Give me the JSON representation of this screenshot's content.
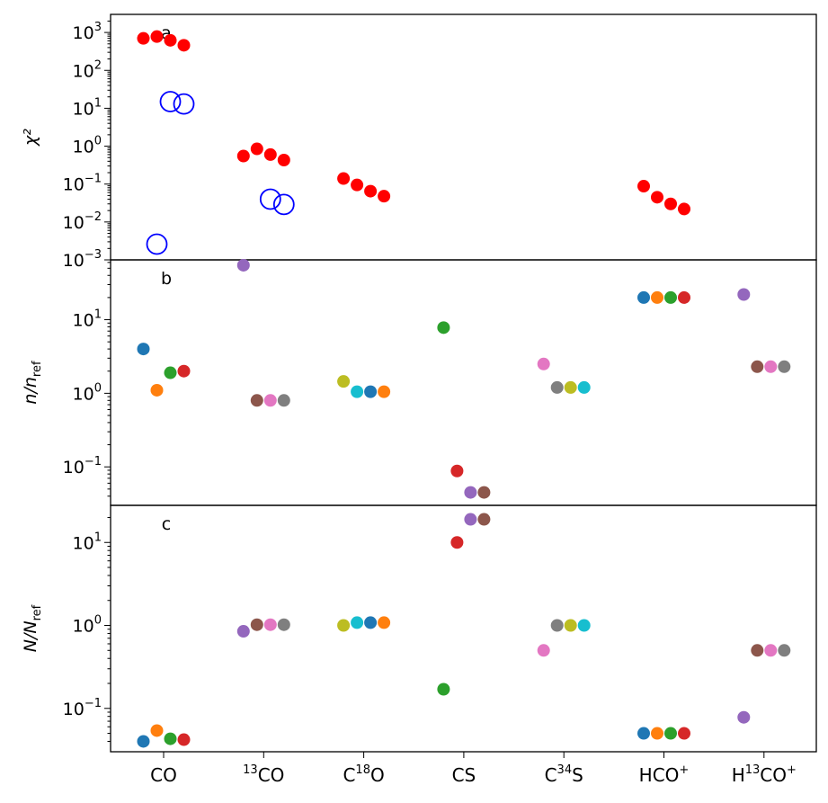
{
  "chart_data": {
    "type": "scatter",
    "categories": [
      {
        "base": "CO",
        "sup": "",
        "pre": "",
        "post": ""
      },
      {
        "base": "CO",
        "sup": "",
        "pre": "13",
        "post": ""
      },
      {
        "base": "C",
        "sup": "18",
        "pre": "",
        "post": "O"
      },
      {
        "base": "CS",
        "sup": "",
        "pre": "",
        "post": ""
      },
      {
        "base": "C",
        "sup": "34",
        "pre": "",
        "post": "S"
      },
      {
        "base": "HCO",
        "sup": "+",
        "pre": "",
        "post": ""
      },
      {
        "base": "H",
        "sup": "13",
        "pre": "",
        "post": "CO+"
      }
    ],
    "category_labels": [
      "CO",
      "13CO",
      "C18O",
      "CS",
      "C34S",
      "HCO+",
      "H13CO+"
    ],
    "colors": {
      "blue": "#1f77b4",
      "orange": "#ff7f0e",
      "green": "#2ca02c",
      "red": "#d62728",
      "purple": "#9467bd",
      "brown": "#8c564b",
      "pink": "#e377c2",
      "gray": "#7f7f7f",
      "olive": "#bcbd22",
      "cyan": "#17becf",
      "chi_red": "#ff0000",
      "chi_ring": "#0000ff"
    },
    "panels": [
      {
        "label": "a",
        "ylabel": "χ²",
        "yscale": "log",
        "ylim": [
          0.001,
          3000
        ],
        "yticks": [
          {
            "value": 0.001,
            "exp": "-3"
          },
          {
            "value": 0.01,
            "exp": "-2"
          },
          {
            "value": 0.1,
            "exp": "-1"
          },
          {
            "value": 1,
            "exp": "0"
          },
          {
            "value": 10,
            "exp": "1"
          },
          {
            "value": 100,
            "exp": "2"
          },
          {
            "value": 1000,
            "exp": "3"
          }
        ],
        "series": [
          {
            "name": "chi2-filled",
            "marker": "filled",
            "color": "chi_red",
            "points": [
              {
                "cat": 0,
                "offset": -0.3,
                "y": 700
              },
              {
                "cat": 0,
                "offset": -0.1,
                "y": 780
              },
              {
                "cat": 0,
                "offset": 0.1,
                "y": 620
              },
              {
                "cat": 0,
                "offset": 0.3,
                "y": 460
              },
              {
                "cat": 1,
                "offset": -0.3,
                "y": 0.55
              },
              {
                "cat": 1,
                "offset": -0.1,
                "y": 0.85
              },
              {
                "cat": 1,
                "offset": 0.1,
                "y": 0.6
              },
              {
                "cat": 1,
                "offset": 0.3,
                "y": 0.43
              },
              {
                "cat": 2,
                "offset": -0.3,
                "y": 0.14
              },
              {
                "cat": 2,
                "offset": -0.1,
                "y": 0.095
              },
              {
                "cat": 2,
                "offset": 0.1,
                "y": 0.065
              },
              {
                "cat": 2,
                "offset": 0.3,
                "y": 0.048
              },
              {
                "cat": 5,
                "offset": -0.3,
                "y": 0.088
              },
              {
                "cat": 5,
                "offset": -0.1,
                "y": 0.045
              },
              {
                "cat": 5,
                "offset": 0.1,
                "y": 0.03
              },
              {
                "cat": 5,
                "offset": 0.3,
                "y": 0.022
              }
            ]
          },
          {
            "name": "chi2-open",
            "marker": "open",
            "color": "chi_ring",
            "points": [
              {
                "cat": 0,
                "offset": -0.1,
                "y": 0.0026
              },
              {
                "cat": 0,
                "offset": 0.1,
                "y": 15
              },
              {
                "cat": 0,
                "offset": 0.3,
                "y": 13
              },
              {
                "cat": 1,
                "offset": 0.1,
                "y": 0.04
              },
              {
                "cat": 1,
                "offset": 0.3,
                "y": 0.029
              }
            ]
          }
        ]
      },
      {
        "label": "b",
        "ylabel": "n/n_ref",
        "ylabel_main": "n/n",
        "ylabel_sub": "ref",
        "yscale": "log",
        "ylim": [
          0.03,
          65
        ],
        "yticks": [
          {
            "value": 0.1,
            "exp": "-1"
          },
          {
            "value": 1,
            "exp": "0"
          },
          {
            "value": 10,
            "exp": "1"
          }
        ],
        "series": [
          {
            "name": "ratios",
            "marker": "filled",
            "points": [
              {
                "cat": 0,
                "offset": -0.3,
                "y": 4.0,
                "color": "blue"
              },
              {
                "cat": 0,
                "offset": -0.1,
                "y": 1.1,
                "color": "orange"
              },
              {
                "cat": 0,
                "offset": 0.1,
                "y": 1.9,
                "color": "green"
              },
              {
                "cat": 0,
                "offset": 0.3,
                "y": 2.0,
                "color": "red"
              },
              {
                "cat": 1,
                "offset": -0.3,
                "y": 55,
                "color": "purple"
              },
              {
                "cat": 1,
                "offset": -0.1,
                "y": 0.8,
                "color": "brown"
              },
              {
                "cat": 1,
                "offset": 0.1,
                "y": 0.8,
                "color": "pink"
              },
              {
                "cat": 1,
                "offset": 0.3,
                "y": 0.8,
                "color": "gray"
              },
              {
                "cat": 2,
                "offset": -0.3,
                "y": 1.45,
                "color": "olive"
              },
              {
                "cat": 2,
                "offset": -0.1,
                "y": 1.05,
                "color": "cyan"
              },
              {
                "cat": 2,
                "offset": 0.1,
                "y": 1.05,
                "color": "blue"
              },
              {
                "cat": 2,
                "offset": 0.3,
                "y": 1.05,
                "color": "orange"
              },
              {
                "cat": 3,
                "offset": -0.3,
                "y": 7.8,
                "color": "green"
              },
              {
                "cat": 3,
                "offset": -0.1,
                "y": 0.088,
                "color": "red"
              },
              {
                "cat": 3,
                "offset": 0.1,
                "y": 0.045,
                "color": "purple"
              },
              {
                "cat": 3,
                "offset": 0.3,
                "y": 0.045,
                "color": "brown"
              },
              {
                "cat": 4,
                "offset": -0.3,
                "y": 2.5,
                "color": "pink"
              },
              {
                "cat": 4,
                "offset": -0.1,
                "y": 1.2,
                "color": "gray"
              },
              {
                "cat": 4,
                "offset": 0.1,
                "y": 1.2,
                "color": "olive"
              },
              {
                "cat": 4,
                "offset": 0.3,
                "y": 1.2,
                "color": "cyan"
              },
              {
                "cat": 5,
                "offset": -0.3,
                "y": 20,
                "color": "blue"
              },
              {
                "cat": 5,
                "offset": -0.1,
                "y": 20,
                "color": "orange"
              },
              {
                "cat": 5,
                "offset": 0.1,
                "y": 20,
                "color": "green"
              },
              {
                "cat": 5,
                "offset": 0.3,
                "y": 20,
                "color": "red"
              },
              {
                "cat": 6,
                "offset": -0.3,
                "y": 22,
                "color": "purple"
              },
              {
                "cat": 6,
                "offset": -0.1,
                "y": 2.3,
                "color": "brown"
              },
              {
                "cat": 6,
                "offset": 0.1,
                "y": 2.3,
                "color": "pink"
              },
              {
                "cat": 6,
                "offset": 0.3,
                "y": 2.3,
                "color": "gray"
              }
            ]
          }
        ]
      },
      {
        "label": "c",
        "ylabel": "N/N_ref",
        "ylabel_main": "N/N",
        "ylabel_sub": "ref",
        "yscale": "log",
        "ylim": [
          0.03,
          28
        ],
        "yticks": [
          {
            "value": 0.1,
            "exp": "-1"
          },
          {
            "value": 1,
            "exp": "0"
          },
          {
            "value": 10,
            "exp": "1"
          }
        ],
        "series": [
          {
            "name": "ratios",
            "marker": "filled",
            "points": [
              {
                "cat": 0,
                "offset": -0.3,
                "y": 0.04,
                "color": "blue"
              },
              {
                "cat": 0,
                "offset": -0.1,
                "y": 0.054,
                "color": "orange"
              },
              {
                "cat": 0,
                "offset": 0.1,
                "y": 0.043,
                "color": "green"
              },
              {
                "cat": 0,
                "offset": 0.3,
                "y": 0.042,
                "color": "red"
              },
              {
                "cat": 1,
                "offset": -0.3,
                "y": 0.85,
                "color": "purple"
              },
              {
                "cat": 1,
                "offset": -0.1,
                "y": 1.02,
                "color": "brown"
              },
              {
                "cat": 1,
                "offset": 0.1,
                "y": 1.02,
                "color": "pink"
              },
              {
                "cat": 1,
                "offset": 0.3,
                "y": 1.02,
                "color": "gray"
              },
              {
                "cat": 2,
                "offset": -0.3,
                "y": 1.0,
                "color": "olive"
              },
              {
                "cat": 2,
                "offset": -0.1,
                "y": 1.08,
                "color": "cyan"
              },
              {
                "cat": 2,
                "offset": 0.1,
                "y": 1.08,
                "color": "blue"
              },
              {
                "cat": 2,
                "offset": 0.3,
                "y": 1.08,
                "color": "orange"
              },
              {
                "cat": 3,
                "offset": -0.3,
                "y": 0.17,
                "color": "green"
              },
              {
                "cat": 3,
                "offset": -0.1,
                "y": 10,
                "color": "red"
              },
              {
                "cat": 3,
                "offset": 0.1,
                "y": 19,
                "color": "purple"
              },
              {
                "cat": 3,
                "offset": 0.3,
                "y": 19,
                "color": "brown"
              },
              {
                "cat": 4,
                "offset": -0.3,
                "y": 0.5,
                "color": "pink"
              },
              {
                "cat": 4,
                "offset": -0.1,
                "y": 1.0,
                "color": "gray"
              },
              {
                "cat": 4,
                "offset": 0.1,
                "y": 1.0,
                "color": "olive"
              },
              {
                "cat": 4,
                "offset": 0.3,
                "y": 1.0,
                "color": "cyan"
              },
              {
                "cat": 5,
                "offset": -0.3,
                "y": 0.05,
                "color": "blue"
              },
              {
                "cat": 5,
                "offset": -0.1,
                "y": 0.05,
                "color": "orange"
              },
              {
                "cat": 5,
                "offset": 0.1,
                "y": 0.05,
                "color": "green"
              },
              {
                "cat": 5,
                "offset": 0.3,
                "y": 0.05,
                "color": "red"
              },
              {
                "cat": 6,
                "offset": -0.3,
                "y": 0.078,
                "color": "purple"
              },
              {
                "cat": 6,
                "offset": -0.1,
                "y": 0.5,
                "color": "brown"
              },
              {
                "cat": 6,
                "offset": 0.1,
                "y": 0.5,
                "color": "pink"
              },
              {
                "cat": 6,
                "offset": 0.3,
                "y": 0.5,
                "color": "gray"
              }
            ]
          }
        ]
      }
    ]
  }
}
